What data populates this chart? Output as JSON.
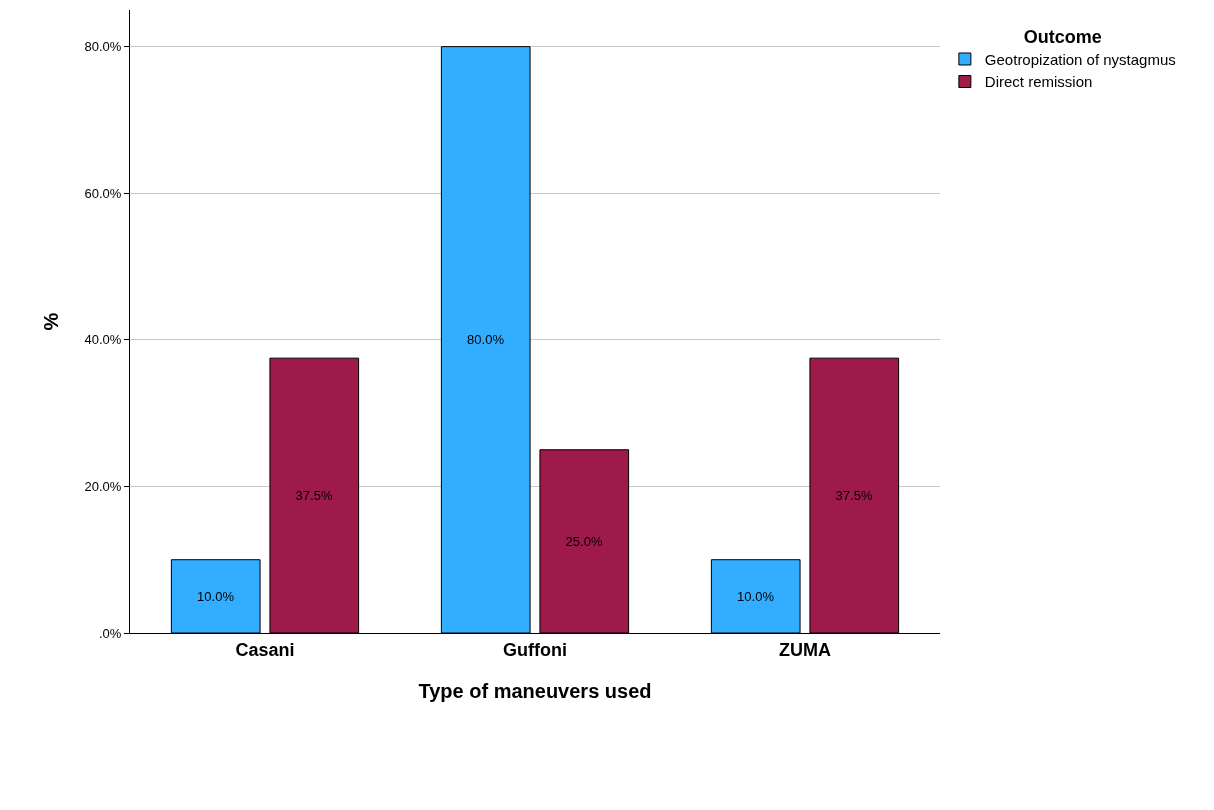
{
  "chart_data": {
    "type": "bar",
    "xlabel": "Type of maneuvers used",
    "ylabel": "%",
    "legend_title": "Outcome",
    "categories": [
      "Casani",
      "Guffoni",
      "ZUMA"
    ],
    "series": [
      {
        "name": "Geotropization of nystagmus",
        "color": "#33adff",
        "values": [
          10,
          80,
          10
        ],
        "value_labels": [
          "10.0%",
          "80.0%",
          "10.0%"
        ]
      },
      {
        "name": "Direct remission",
        "color": "#9e1a4a",
        "values": [
          37.5,
          25,
          37.5
        ],
        "value_labels": [
          "37.5%",
          "25.0%",
          "37.5%"
        ]
      }
    ],
    "ylim": [
      0,
      85
    ],
    "yticks": [
      {
        "value": 0,
        "label": ".0%"
      },
      {
        "value": 20,
        "label": "20.0%"
      },
      {
        "value": 40,
        "label": "40.0%"
      },
      {
        "value": 60,
        "label": "60.0%"
      },
      {
        "value": 80,
        "label": "80.0%"
      }
    ],
    "grid": "y",
    "legend": "top right"
  }
}
